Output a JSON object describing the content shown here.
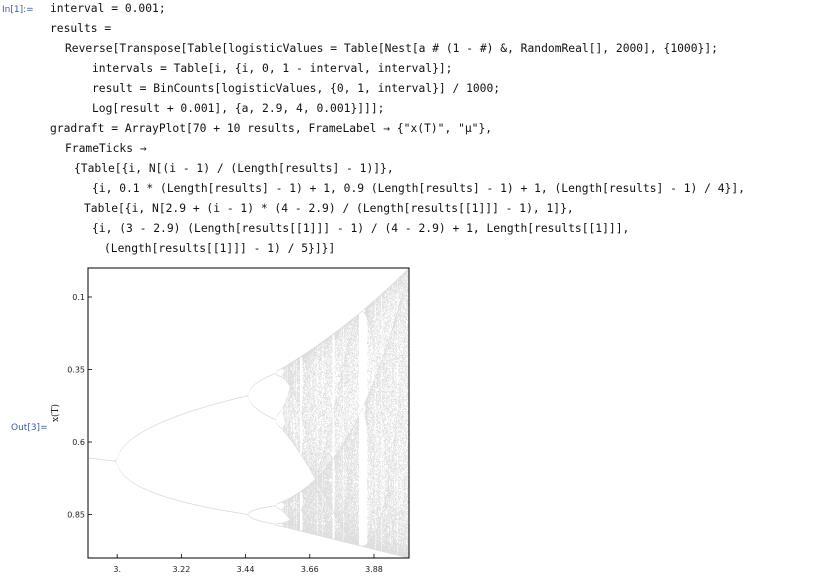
{
  "notebook": {
    "input_label": "In[1]:=",
    "output_label": "Out[3]=",
    "code_lines": [
      "interval = 0.001;",
      "results =",
      "Reverse[Transpose[Table[logisticValues = Table[Nest[a # (1 - #) &, RandomReal[], 2000], {1000}];",
      "intervals = Table[i, {i, 0, 1 - interval, interval}];",
      "result = BinCounts[logisticValues, {0, 1, interval}] / 1000;",
      "Log[result + 0.001], {a, 2.9, 4, 0.001}]]];",
      "gradraft = ArrayPlot[70 + 10 results, FrameLabel → {\"x(T)\", \"μ\"},",
      "FrameTicks →",
      "{Table[{i, N[(i - 1) / (Length[results] - 1)]},",
      "{i, 0.1 * (Length[results] - 1) + 1, 0.9 (Length[results] - 1) + 1, (Length[results] - 1) / 4}],",
      "Table[{i, N[2.9 + (i - 1) * (4 - 2.9) / (Length[results[[1]]] - 1), 1]},",
      "{i, (3 - 2.9) (Length[results[[1]]] - 1) / (4 - 2.9) + 1, Length[results[[1]]],",
      "(Length[results[[1]]] - 1) / 5}]}]"
    ]
  },
  "plot": {
    "frame_label_y": "x(T)",
    "x_ticks": [
      "3.",
      "3.22",
      "3.44",
      "3.66",
      "3.88"
    ],
    "y_ticks": [
      "0.1",
      "0.35",
      "0.6",
      "0.85"
    ]
  },
  "chart_data": {
    "type": "heatmap",
    "title": "",
    "xlabel": "",
    "ylabel": "x(T)",
    "x_tick_labels": [
      "3.",
      "3.22",
      "3.44",
      "3.66",
      "3.88"
    ],
    "y_tick_labels": [
      "0.1",
      "0.35",
      "0.6",
      "0.85"
    ],
    "xlim": [
      2.9,
      4.0
    ],
    "ylim": [
      1.0,
      0.0
    ],
    "grid": false,
    "legend": "none",
    "colors": {
      "background": "#ffffff",
      "marks": "#000000",
      "frame": "#000000"
    }
  }
}
